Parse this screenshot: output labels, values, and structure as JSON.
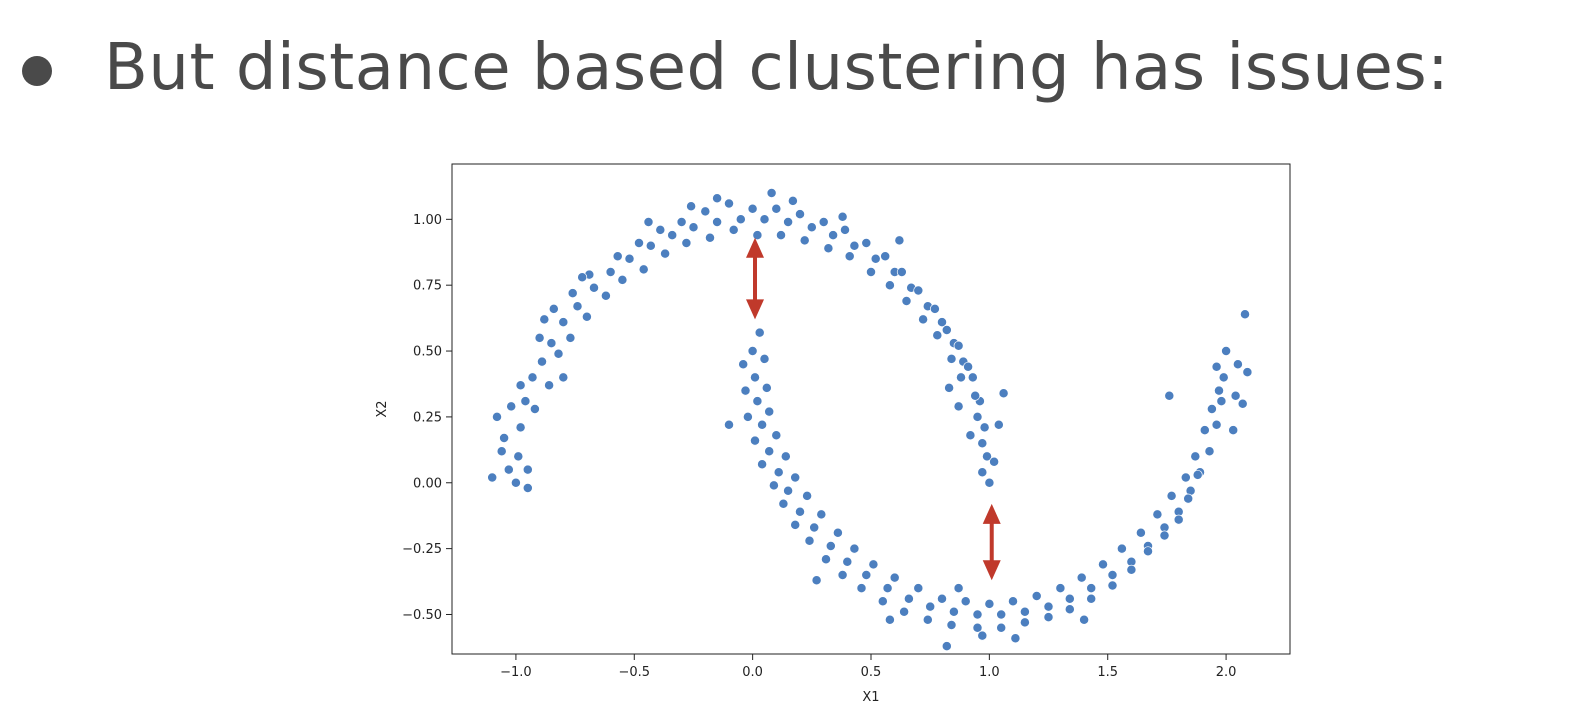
{
  "slide": {
    "headline": "But distance based clustering has issues:"
  },
  "chart_data": {
    "type": "scatter",
    "title": "",
    "xlabel": "X1",
    "ylabel": "X2",
    "xlim": [
      -1.27,
      2.27
    ],
    "ylim": [
      -0.65,
      1.21
    ],
    "xticks": [
      -1.0,
      -0.5,
      0.0,
      0.5,
      1.0,
      1.5,
      2.0
    ],
    "xtick_labels": [
      "−1.0",
      "−0.5",
      "0.0",
      "0.5",
      "1.0",
      "1.5",
      "2.0"
    ],
    "yticks": [
      -0.5,
      -0.25,
      0.0,
      0.25,
      0.5,
      0.75,
      1.0
    ],
    "ytick_labels": [
      "−0.50",
      "−0.25",
      "0.00",
      "0.25",
      "0.50",
      "0.75",
      "1.00"
    ],
    "grid": false,
    "point_color": "#4c7fbf",
    "arrow_color": "#c0392b",
    "annotations": [
      {
        "type": "double-arrow",
        "x": 0.01,
        "y_from": 0.93,
        "y_to": 0.62
      },
      {
        "type": "double-arrow",
        "x": 1.01,
        "y_from": -0.08,
        "y_to": -0.37
      }
    ],
    "series": [
      {
        "values": [
          [
            -1.0,
            0.0
          ],
          [
            -0.99,
            0.1
          ],
          [
            -0.98,
            0.21
          ],
          [
            -0.96,
            0.31
          ],
          [
            -0.93,
            0.4
          ],
          [
            -0.89,
            0.46
          ],
          [
            -0.85,
            0.53
          ],
          [
            -0.8,
            0.61
          ],
          [
            -0.74,
            0.67
          ],
          [
            -0.67,
            0.74
          ],
          [
            -0.6,
            0.8
          ],
          [
            -0.52,
            0.85
          ],
          [
            -0.43,
            0.9
          ],
          [
            -0.34,
            0.94
          ],
          [
            -0.25,
            0.97
          ],
          [
            -0.15,
            0.99
          ],
          [
            -0.05,
            1.0
          ],
          [
            0.05,
            1.0
          ],
          [
            0.15,
            0.99
          ],
          [
            0.25,
            0.97
          ],
          [
            0.34,
            0.94
          ],
          [
            0.43,
            0.9
          ],
          [
            0.52,
            0.85
          ],
          [
            0.6,
            0.8
          ],
          [
            0.67,
            0.74
          ],
          [
            0.74,
            0.67
          ],
          [
            0.8,
            0.61
          ],
          [
            0.85,
            0.53
          ],
          [
            0.89,
            0.46
          ],
          [
            0.93,
            0.4
          ],
          [
            0.96,
            0.31
          ],
          [
            0.98,
            0.21
          ],
          [
            0.99,
            0.1
          ],
          [
            1.0,
            0.0
          ],
          [
            -1.06,
            0.12
          ],
          [
            -1.03,
            0.05
          ],
          [
            -1.05,
            0.17
          ],
          [
            -0.95,
            0.05
          ],
          [
            -0.92,
            0.28
          ],
          [
            -1.02,
            0.29
          ],
          [
            -0.98,
            0.37
          ],
          [
            -0.86,
            0.37
          ],
          [
            -0.9,
            0.55
          ],
          [
            -0.82,
            0.49
          ],
          [
            -0.84,
            0.66
          ],
          [
            -0.77,
            0.55
          ],
          [
            -0.76,
            0.72
          ],
          [
            -0.7,
            0.63
          ],
          [
            -0.69,
            0.79
          ],
          [
            -0.62,
            0.71
          ],
          [
            -0.57,
            0.86
          ],
          [
            -0.55,
            0.77
          ],
          [
            -0.48,
            0.91
          ],
          [
            -0.46,
            0.81
          ],
          [
            -0.39,
            0.96
          ],
          [
            -0.37,
            0.87
          ],
          [
            -0.3,
            0.99
          ],
          [
            -0.28,
            0.91
          ],
          [
            -0.2,
            1.03
          ],
          [
            -0.18,
            0.93
          ],
          [
            -0.1,
            1.06
          ],
          [
            -0.08,
            0.96
          ],
          [
            0.0,
            1.04
          ],
          [
            0.02,
            0.94
          ],
          [
            0.1,
            1.04
          ],
          [
            0.12,
            0.94
          ],
          [
            0.2,
            1.02
          ],
          [
            0.22,
            0.92
          ],
          [
            0.3,
            0.99
          ],
          [
            0.32,
            0.89
          ],
          [
            0.39,
            0.96
          ],
          [
            0.41,
            0.86
          ],
          [
            0.48,
            0.91
          ],
          [
            0.5,
            0.8
          ],
          [
            0.56,
            0.86
          ],
          [
            0.58,
            0.75
          ],
          [
            0.63,
            0.8
          ],
          [
            0.65,
            0.69
          ],
          [
            0.7,
            0.73
          ],
          [
            0.72,
            0.62
          ],
          [
            0.77,
            0.66
          ],
          [
            0.78,
            0.56
          ],
          [
            0.82,
            0.58
          ],
          [
            0.84,
            0.47
          ],
          [
            0.87,
            0.52
          ],
          [
            0.88,
            0.4
          ],
          [
            0.91,
            0.44
          ],
          [
            0.94,
            0.33
          ],
          [
            0.95,
            0.25
          ],
          [
            0.97,
            0.15
          ],
          [
            1.04,
            0.22
          ],
          [
            1.02,
            0.08
          ],
          [
            0.97,
            0.04
          ],
          [
            1.06,
            0.34
          ],
          [
            0.92,
            0.18
          ],
          [
            -1.1,
            0.02
          ],
          [
            -0.95,
            -0.02
          ],
          [
            -1.08,
            0.25
          ],
          [
            -0.8,
            0.4
          ],
          [
            -0.88,
            0.62
          ],
          [
            -0.72,
            0.78
          ],
          [
            -0.44,
            0.99
          ],
          [
            -0.15,
            1.08
          ],
          [
            0.17,
            1.07
          ],
          [
            0.38,
            1.01
          ],
          [
            0.62,
            0.92
          ],
          [
            0.87,
            0.29
          ],
          [
            0.83,
            0.36
          ],
          [
            -0.26,
            1.05
          ],
          [
            0.08,
            1.1
          ]
        ]
      },
      {
        "values": [
          [
            0.0,
            0.5
          ],
          [
            0.01,
            0.4
          ],
          [
            0.02,
            0.31
          ],
          [
            0.04,
            0.22
          ],
          [
            0.07,
            0.12
          ],
          [
            0.11,
            0.04
          ],
          [
            0.15,
            -0.03
          ],
          [
            0.2,
            -0.11
          ],
          [
            0.26,
            -0.17
          ],
          [
            0.33,
            -0.24
          ],
          [
            0.4,
            -0.3
          ],
          [
            0.48,
            -0.35
          ],
          [
            0.57,
            -0.4
          ],
          [
            0.66,
            -0.44
          ],
          [
            0.75,
            -0.47
          ],
          [
            0.85,
            -0.49
          ],
          [
            0.95,
            -0.5
          ],
          [
            1.05,
            -0.5
          ],
          [
            1.15,
            -0.49
          ],
          [
            1.25,
            -0.47
          ],
          [
            1.34,
            -0.44
          ],
          [
            1.43,
            -0.4
          ],
          [
            1.52,
            -0.35
          ],
          [
            1.6,
            -0.3
          ],
          [
            1.67,
            -0.24
          ],
          [
            1.74,
            -0.17
          ],
          [
            1.8,
            -0.11
          ],
          [
            1.85,
            -0.03
          ],
          [
            1.89,
            0.04
          ],
          [
            1.93,
            0.12
          ],
          [
            1.96,
            0.22
          ],
          [
            1.98,
            0.31
          ],
          [
            1.99,
            0.4
          ],
          [
            2.0,
            0.5
          ],
          [
            -0.04,
            0.45
          ],
          [
            0.05,
            0.47
          ],
          [
            -0.03,
            0.35
          ],
          [
            0.06,
            0.36
          ],
          [
            -0.02,
            0.25
          ],
          [
            0.07,
            0.27
          ],
          [
            0.01,
            0.16
          ],
          [
            0.1,
            0.18
          ],
          [
            0.04,
            0.07
          ],
          [
            0.14,
            0.1
          ],
          [
            0.09,
            -0.01
          ],
          [
            0.18,
            0.02
          ],
          [
            0.13,
            -0.08
          ],
          [
            0.23,
            -0.05
          ],
          [
            0.18,
            -0.16
          ],
          [
            0.29,
            -0.12
          ],
          [
            0.24,
            -0.22
          ],
          [
            0.36,
            -0.19
          ],
          [
            0.31,
            -0.29
          ],
          [
            0.43,
            -0.25
          ],
          [
            0.38,
            -0.35
          ],
          [
            0.51,
            -0.31
          ],
          [
            0.46,
            -0.4
          ],
          [
            0.6,
            -0.36
          ],
          [
            0.55,
            -0.45
          ],
          [
            0.7,
            -0.4
          ],
          [
            0.64,
            -0.49
          ],
          [
            0.8,
            -0.44
          ],
          [
            0.74,
            -0.52
          ],
          [
            0.9,
            -0.45
          ],
          [
            0.84,
            -0.54
          ],
          [
            1.0,
            -0.46
          ],
          [
            0.95,
            -0.55
          ],
          [
            1.1,
            -0.45
          ],
          [
            1.05,
            -0.55
          ],
          [
            1.2,
            -0.43
          ],
          [
            1.15,
            -0.53
          ],
          [
            1.3,
            -0.4
          ],
          [
            1.25,
            -0.51
          ],
          [
            1.39,
            -0.36
          ],
          [
            1.34,
            -0.48
          ],
          [
            1.48,
            -0.31
          ],
          [
            1.43,
            -0.44
          ],
          [
            1.56,
            -0.25
          ],
          [
            1.52,
            -0.39
          ],
          [
            1.64,
            -0.19
          ],
          [
            1.6,
            -0.33
          ],
          [
            1.71,
            -0.12
          ],
          [
            1.67,
            -0.26
          ],
          [
            1.77,
            -0.05
          ],
          [
            1.74,
            -0.2
          ],
          [
            1.83,
            0.02
          ],
          [
            1.8,
            -0.14
          ],
          [
            1.87,
            0.1
          ],
          [
            1.84,
            -0.06
          ],
          [
            1.91,
            0.2
          ],
          [
            1.88,
            0.03
          ],
          [
            1.94,
            0.28
          ],
          [
            1.93,
            0.12
          ],
          [
            2.03,
            0.2
          ],
          [
            1.97,
            0.35
          ],
          [
            2.04,
            0.33
          ],
          [
            1.96,
            0.44
          ],
          [
            2.05,
            0.45
          ],
          [
            2.08,
            0.64
          ],
          [
            2.07,
            0.3
          ],
          [
            2.09,
            0.42
          ],
          [
            -0.1,
            0.22
          ],
          [
            0.82,
            -0.62
          ],
          [
            0.97,
            -0.58
          ],
          [
            1.11,
            -0.59
          ],
          [
            0.58,
            -0.52
          ],
          [
            0.87,
            -0.4
          ],
          [
            0.27,
            -0.37
          ],
          [
            1.4,
            -0.52
          ],
          [
            0.03,
            0.57
          ],
          [
            1.76,
            0.33
          ]
        ]
      }
    ]
  }
}
